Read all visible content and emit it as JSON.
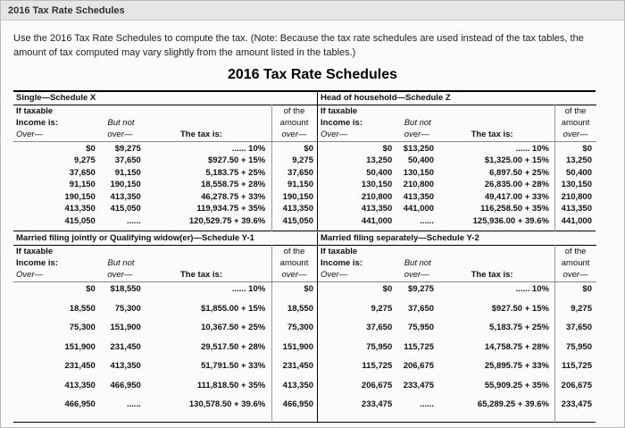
{
  "header": {
    "title": "2016 Tax Rate Schedules"
  },
  "instructions": "Use the 2016 Tax Rate Schedules to compute the tax. (Note: Because the tax rate schedules are used instead of the tax tables, the amount of tax computed may vary slightly from the amount listed in the tables.)",
  "title": "2016 Tax Rate Schedules",
  "column_labels": {
    "if_taxable": "If taxable",
    "income_is": "Income is:",
    "over": "Over—",
    "but_not": "But not",
    "but_not_over": "over—",
    "tax_is": "The tax is:",
    "of_the": "of the",
    "amount": "amount",
    "amount_over": "over—"
  },
  "schedules": [
    {
      "title": "Single—Schedule X",
      "rows": [
        [
          "$0",
          "$9,275",
          "...... 10%",
          "$0"
        ],
        [
          "9,275",
          "37,650",
          "$927.50 + 15%",
          "9,275"
        ],
        [
          "37,650",
          "91,150",
          "5,183.75 + 25%",
          "37,650"
        ],
        [
          "91,150",
          "190,150",
          "18,558.75 + 28%",
          "91,150"
        ],
        [
          "190,150",
          "413,350",
          "46,278.75 + 33%",
          "190,150"
        ],
        [
          "413,350",
          "415,050",
          "119,934.75 + 35%",
          "413,350"
        ],
        [
          "415,050",
          "......",
          "120,529.75 + 39.6%",
          "415,050"
        ]
      ]
    },
    {
      "title": "Head of household—Schedule Z",
      "rows": [
        [
          "$0",
          "$13,250",
          "...... 10%",
          "$0"
        ],
        [
          "13,250",
          "50,400",
          "$1,325.00 + 15%",
          "13,250"
        ],
        [
          "50,400",
          "130,150",
          "6,897.50 + 25%",
          "50,400"
        ],
        [
          "130,150",
          "210,800",
          "26,835.00 + 28%",
          "130,150"
        ],
        [
          "210,800",
          "413,350",
          "49,417.00 + 33%",
          "210,800"
        ],
        [
          "413,350",
          "441,000",
          "116,258.50 + 35%",
          "413,350"
        ],
        [
          "441,000",
          "......",
          "125,936.00 + 39.6%",
          "441,000"
        ]
      ]
    },
    {
      "title": "Married filing jointly or Qualifying widow(er)—Schedule Y-1",
      "rows": [
        [
          "$0",
          "$18,550",
          "...... 10%",
          "$0"
        ],
        [
          "18,550",
          "75,300",
          "$1,855.00 + 15%",
          "18,550"
        ],
        [
          "75,300",
          "151,900",
          "10,367.50 + 25%",
          "75,300"
        ],
        [
          "151,900",
          "231,450",
          "29,517.50 + 28%",
          "151,900"
        ],
        [
          "231,450",
          "413,350",
          "51,791.50 + 33%",
          "231,450"
        ],
        [
          "413,350",
          "466,950",
          "111,818.50 + 35%",
          "413,350"
        ],
        [
          "466,950",
          "......",
          "130,578.50 + 39.6%",
          "466,950"
        ]
      ]
    },
    {
      "title": "Married filing separately—Schedule Y-2",
      "rows": [
        [
          "$0",
          "$9,275",
          "...... 10%",
          "$0"
        ],
        [
          "9,275",
          "37,650",
          "$927.50 + 15%",
          "9,275"
        ],
        [
          "37,650",
          "75,950",
          "5,183.75 + 25%",
          "37,650"
        ],
        [
          "75,950",
          "115,725",
          "14,758.75 + 28%",
          "75,950"
        ],
        [
          "115,725",
          "206,675",
          "25,895.75 + 33%",
          "115,725"
        ],
        [
          "206,675",
          "233,475",
          "55,909.25 + 35%",
          "206,675"
        ],
        [
          "233,475",
          "......",
          "65,289.25 + 39.6%",
          "233,475"
        ]
      ]
    }
  ]
}
